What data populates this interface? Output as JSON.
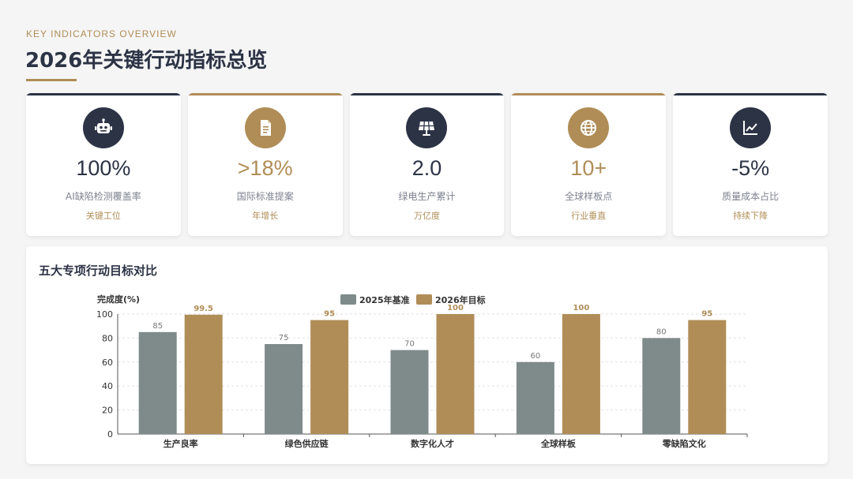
{
  "header": {
    "eyebrow": "KEY INDICATORS OVERVIEW",
    "title": "2026年关键行动指标总览"
  },
  "cards": [
    {
      "icon": "robot-icon",
      "value": "100%",
      "label": "AI缺陷检测覆盖率",
      "sub": "关键工位",
      "theme": "navy"
    },
    {
      "icon": "document-icon",
      "value": ">18%",
      "label": "国际标准提案",
      "sub": "年增长",
      "theme": "gold"
    },
    {
      "icon": "solar-panel-icon",
      "value": "2.0",
      "label": "绿电生产累计",
      "sub": "万亿度",
      "theme": "navy"
    },
    {
      "icon": "globe-icon",
      "value": "10+",
      "label": "全球样板点",
      "sub": "行业垂直",
      "theme": "gold"
    },
    {
      "icon": "line-chart-icon",
      "value": "-5%",
      "label": "质量成本占比",
      "sub": "持续下降",
      "theme": "navy"
    }
  ],
  "panel": {
    "title": "五大专项行动目标对比"
  },
  "colors": {
    "navy": "#2c3345",
    "gold": "#b08d57",
    "gray": "#7f8a8a"
  },
  "chart_data": {
    "type": "bar",
    "ylabel": "完成度(%)",
    "categories": [
      "生产良率",
      "绿色供应链",
      "数字化人才",
      "全球样板",
      "零缺陷文化"
    ],
    "series": [
      {
        "name": "2025年基准",
        "values": [
          85,
          75,
          70,
          60,
          80
        ],
        "color": "#7f8a8a"
      },
      {
        "name": "2026年目标",
        "values": [
          99.5,
          95,
          100,
          100,
          95
        ],
        "color": "#b08d57"
      }
    ],
    "ylim": [
      0,
      100
    ],
    "yticks": [
      0,
      20,
      40,
      60,
      80,
      100
    ],
    "legend": "top-center",
    "grid": true
  }
}
